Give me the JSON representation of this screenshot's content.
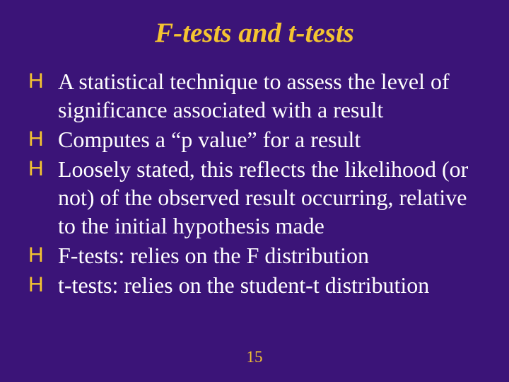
{
  "colors": {
    "background": "#3b1478",
    "accent": "#f4c431",
    "body_text": "#ffffff"
  },
  "typography": {
    "title_fontsize": 39,
    "title_style": "italic bold",
    "body_fontsize": 32,
    "body_lineheight": 40,
    "font_family": "Times New Roman"
  },
  "title": "F-tests and t-tests",
  "bullets": [
    "A statistical technique to assess the level of significance associated with a result",
    "Computes a “p value” for a result",
    "Loosely stated, this reflects the likelihood (or not) of the observed result occurring, relative to the initial hypothesis made",
    "F-tests: relies on the F distribution",
    "t-tests: relies on the student-t distribution"
  ],
  "bullet_glyph": "H",
  "page_number": "15"
}
